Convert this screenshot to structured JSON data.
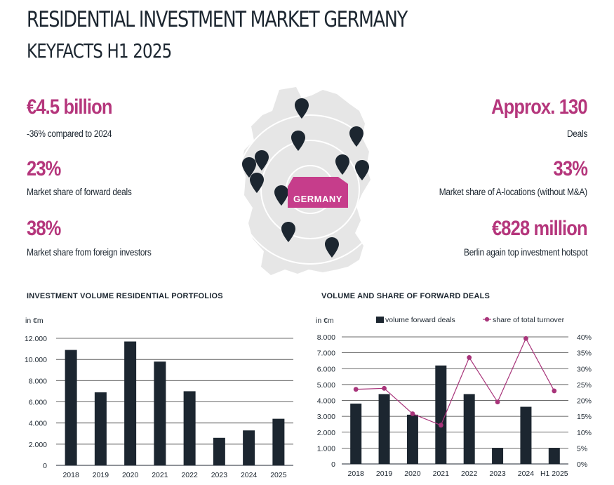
{
  "header": {
    "title": "RESIDENTIAL INVESTMENT MARKET GERMANY",
    "subtitle": "KEYFACTS H1 2025"
  },
  "keyfacts": {
    "left": [
      {
        "value": "€4.5 billion",
        "label": "-36% compared to 2024"
      },
      {
        "value": "23%",
        "label": "Market share of forward deals"
      },
      {
        "value": "38%",
        "label": "Market share from foreign investors"
      }
    ],
    "right": [
      {
        "value": "Approx. 130",
        "label": "Deals"
      },
      {
        "value": "33%",
        "label": "Market share of A-locations (without M&A)"
      },
      {
        "value": "€828 million",
        "label": "Berlin again top investment hotspot"
      }
    ]
  },
  "map": {
    "badge": "GERMANY",
    "icon": "location-pin-icon",
    "colors": {
      "land": "#e6e6e6",
      "ring": "#ffffff",
      "pin": "#1c2630",
      "badge": "#c63d8b"
    }
  },
  "colors": {
    "accent": "#b5367c",
    "bar": "#1c2630",
    "line": "#a8347a"
  },
  "chart_data": [
    {
      "type": "bar",
      "title": "INVESTMENT VOLUME RESIDENTIAL PORTFOLIOS",
      "ylabel": "in €m",
      "categories": [
        "2018",
        "2019",
        "2020",
        "2021",
        "2022",
        "2023",
        "2024",
        "2025"
      ],
      "values": [
        10900,
        6900,
        11700,
        9800,
        7000,
        2600,
        3300,
        4400
      ],
      "ylim": [
        0,
        12000
      ],
      "yticks": [
        0,
        2000,
        4000,
        6000,
        8000,
        10000,
        12000
      ],
      "ytick_labels": [
        "0",
        "2.000",
        "4.000",
        "6.000",
        "8.000",
        "10.000",
        "12.000"
      ],
      "grid": true
    },
    {
      "type": "bar+line",
      "title": "VOLUME AND SHARE OF FORWARD DEALS",
      "ylabel": "in €m",
      "categories": [
        "2018",
        "2019",
        "2020",
        "2021",
        "2022",
        "2023",
        "2024",
        "H1 2025"
      ],
      "series": [
        {
          "name": "volume forward deals",
          "type": "bar",
          "axis": "left",
          "values": [
            3800,
            4400,
            3100,
            6200,
            4400,
            1000,
            3600,
            1000
          ]
        },
        {
          "name": "share of total turnover",
          "type": "line",
          "axis": "right",
          "values": [
            23.5,
            23.8,
            15.8,
            12.2,
            33.5,
            19.5,
            39.5,
            23
          ]
        }
      ],
      "ylim": [
        0,
        8000
      ],
      "yticks": [
        0,
        1000,
        2000,
        3000,
        4000,
        5000,
        6000,
        7000,
        8000
      ],
      "ytick_labels": [
        "0",
        "1.000",
        "2.000",
        "3.000",
        "4.000",
        "5.000",
        "6.000",
        "7.000",
        "8.000"
      ],
      "y2lim": [
        0,
        40
      ],
      "y2ticks": [
        0,
        5,
        10,
        15,
        20,
        25,
        30,
        35,
        40
      ],
      "y2tick_labels": [
        "0%",
        "5%",
        "10%",
        "15%",
        "20%",
        "25%",
        "30%",
        "35%",
        "40%"
      ],
      "legend": "top",
      "grid": true
    }
  ]
}
